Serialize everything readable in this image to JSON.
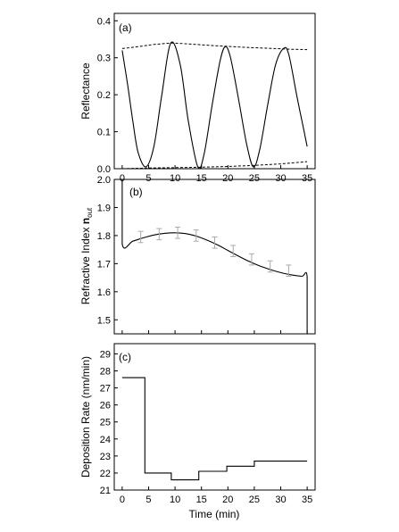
{
  "chart_data": [
    {
      "type": "line",
      "panel_label": "(a)",
      "xlabel": "",
      "ylabel": "Reflectance",
      "xlim": [
        -1.5,
        36.5
      ],
      "ylim": [
        0.0,
        0.42
      ],
      "x_ticks": [
        0,
        5,
        10,
        15,
        20,
        25,
        30,
        35
      ],
      "x_tick_labels": [
        "0",
        "5",
        "10",
        "15",
        "20",
        "25",
        "30",
        "35"
      ],
      "y_ticks": [
        0.0,
        0.1,
        0.2,
        0.3,
        0.4
      ],
      "y_tick_labels": [
        "0.0",
        "0.1",
        "0.2",
        "0.3",
        "0.4"
      ],
      "grid": false,
      "series": [
        {
          "style": "solid",
          "x": [
            0,
            1,
            2,
            3,
            4.5,
            6,
            7.5,
            9.2,
            11,
            12.5,
            14.3,
            15.5,
            17,
            18.5,
            19.5,
            20.5,
            22,
            23.5,
            24.8,
            26,
            27.5,
            29,
            30.5,
            31.5,
            33,
            34,
            35
          ],
          "y": [
            0.32,
            0.23,
            0.13,
            0.045,
            0.005,
            0.06,
            0.2,
            0.34,
            0.28,
            0.13,
            0.005,
            0.04,
            0.17,
            0.29,
            0.33,
            0.3,
            0.19,
            0.07,
            0.005,
            0.05,
            0.17,
            0.28,
            0.325,
            0.31,
            0.2,
            0.13,
            0.06
          ]
        },
        {
          "style": "dashed",
          "x": [
            0,
            3,
            6,
            9.5,
            13,
            17,
            21,
            25,
            29,
            32,
            35
          ],
          "y": [
            0.325,
            0.33,
            0.336,
            0.34,
            0.337,
            0.333,
            0.33,
            0.327,
            0.325,
            0.323,
            0.322
          ]
        },
        {
          "style": "dashed",
          "x": [
            0,
            5,
            10,
            15,
            20,
            25,
            30,
            35
          ],
          "y": [
            0.0,
            0.002,
            0.003,
            0.004,
            0.006,
            0.009,
            0.013,
            0.019
          ]
        }
      ]
    },
    {
      "type": "line",
      "panel_label": "(b)",
      "xlabel": "",
      "ylabel_main": "Refractive Index ",
      "ylabel_bold": "n",
      "ylabel_sub": "out",
      "xlim": [
        -1.5,
        36.5
      ],
      "ylim": [
        1.45,
        2.0
      ],
      "y_ticks": [
        1.5,
        1.6,
        1.7,
        1.8,
        1.9,
        2.0
      ],
      "y_tick_labels": [
        "1.5",
        "1.6",
        "1.7",
        "1.8",
        "1.9",
        "2.0"
      ],
      "grid": false,
      "series": [
        {
          "style": "solid",
          "x": [
            0,
            0,
            2,
            4,
            6,
            8,
            10,
            12,
            14,
            16,
            18,
            20,
            22,
            24,
            26,
            28,
            30,
            32,
            34,
            35,
            35
          ],
          "y": [
            2.0,
            1.77,
            1.78,
            1.792,
            1.802,
            1.808,
            1.81,
            1.807,
            1.798,
            1.784,
            1.767,
            1.747,
            1.727,
            1.708,
            1.692,
            1.679,
            1.668,
            1.66,
            1.655,
            1.653,
            1.45
          ]
        }
      ],
      "error_bars": {
        "x": [
          3.5,
          7,
          10.5,
          14,
          17.5,
          21,
          24.5,
          28,
          31.5
        ],
        "y": [
          1.795,
          1.805,
          1.81,
          1.8,
          1.775,
          1.745,
          1.715,
          1.69,
          1.675
        ],
        "err": [
          0.02,
          0.02,
          0.02,
          0.02,
          0.02,
          0.02,
          0.02,
          0.02,
          0.02
        ]
      }
    },
    {
      "type": "line",
      "panel_label": "(c)",
      "xlabel": "Time (min)",
      "ylabel": "Deposition Rate (nm/min)",
      "xlim": [
        -1.5,
        36.5
      ],
      "ylim": [
        21,
        29.6
      ],
      "x_ticks": [
        0,
        5,
        10,
        15,
        20,
        25,
        30,
        35
      ],
      "x_tick_labels": [
        "0",
        "5",
        "10",
        "15",
        "20",
        "25",
        "30",
        "35"
      ],
      "y_ticks": [
        21,
        22,
        23,
        24,
        25,
        26,
        27,
        28,
        29
      ],
      "y_tick_labels": [
        "21",
        "22",
        "23",
        "24",
        "25",
        "26",
        "27",
        "28",
        "29"
      ],
      "grid": false,
      "series": [
        {
          "style": "step",
          "x": [
            0,
            4.3,
            4.3,
            9.3,
            9.3,
            14.5,
            14.5,
            19.8,
            19.8,
            25,
            25,
            35
          ],
          "y": [
            27.6,
            27.6,
            22.0,
            22.0,
            21.6,
            21.6,
            22.1,
            22.1,
            22.4,
            22.4,
            22.7,
            22.7
          ]
        }
      ]
    }
  ]
}
